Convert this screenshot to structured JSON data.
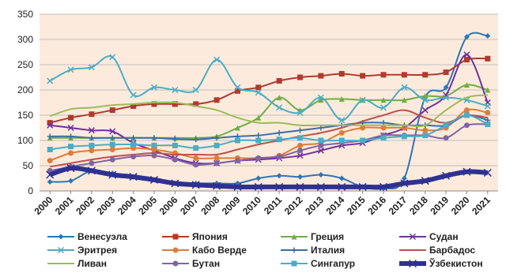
{
  "chart_data": {
    "type": "line",
    "title": "",
    "xlabel": "",
    "ylabel": "",
    "ylim": [
      0,
      350
    ],
    "yticks": [
      0,
      50,
      100,
      150,
      200,
      250,
      300,
      350
    ],
    "grid": true,
    "legend_position": "bottom",
    "x": [
      "2000",
      "2001",
      "2002",
      "2003",
      "2004",
      "2005",
      "2006",
      "2007",
      "2008",
      "2009",
      "2010",
      "2011",
      "2012",
      "2013",
      "2014",
      "2015",
      "2016",
      "2017",
      "2018",
      "2019",
      "2020",
      "2021"
    ],
    "series": [
      {
        "name": "Венесуэла",
        "color": "#2E75B6",
        "marker": "diamond",
        "values": [
          18,
          20,
          40,
          35,
          28,
          22,
          15,
          15,
          15,
          15,
          25,
          30,
          28,
          32,
          25,
          8,
          5,
          25,
          185,
          205,
          305,
          307
        ]
      },
      {
        "name": "Япония",
        "color": "#B03A2E",
        "marker": "square",
        "values": [
          135,
          145,
          152,
          160,
          168,
          172,
          172,
          172,
          180,
          198,
          205,
          218,
          225,
          228,
          232,
          228,
          230,
          230,
          230,
          235,
          260,
          262
        ]
      },
      {
        "name": "Греция",
        "color": "#70AD47",
        "marker": "triangle",
        "values": [
          105,
          105,
          105,
          105,
          105,
          105,
          105,
          105,
          108,
          125,
          145,
          185,
          160,
          180,
          182,
          180,
          180,
          180,
          188,
          188,
          210,
          200
        ]
      },
      {
        "name": "Судан",
        "color": "#7030A0",
        "marker": "x",
        "values": [
          130,
          125,
          120,
          118,
          95,
          80,
          65,
          55,
          55,
          60,
          62,
          65,
          70,
          80,
          90,
          95,
          110,
          125,
          160,
          190,
          270,
          175
        ]
      },
      {
        "name": "Эритрея",
        "color": "#4BACC6",
        "marker": "x",
        "values": [
          218,
          240,
          245,
          265,
          190,
          205,
          200,
          200,
          260,
          205,
          195,
          165,
          155,
          185,
          140,
          180,
          165,
          205,
          180,
          185,
          180,
          168
        ]
      },
      {
        "name": "Кабо Верде",
        "color": "#E07B39",
        "marker": "circle",
        "values": [
          60,
          75,
          80,
          82,
          85,
          82,
          75,
          65,
          65,
          65,
          65,
          70,
          90,
          95,
          115,
          125,
          125,
          125,
          120,
          125,
          160,
          155
        ]
      },
      {
        "name": "Италия",
        "color": "#3A6EA5",
        "marker": "plus",
        "values": [
          108,
          108,
          105,
          105,
          105,
          105,
          103,
          102,
          105,
          108,
          110,
          115,
          120,
          125,
          130,
          135,
          135,
          130,
          130,
          130,
          150,
          140
        ]
      },
      {
        "name": "Барбадос",
        "color": "#C0504D",
        "marker": "none",
        "values": [
          48,
          55,
          62,
          68,
          72,
          75,
          72,
          72,
          72,
          82,
          92,
          100,
          108,
          115,
          125,
          138,
          150,
          160,
          145,
          135,
          150,
          145
        ]
      },
      {
        "name": "Ливан",
        "color": "#9BBB59",
        "marker": "none",
        "values": [
          148,
          162,
          165,
          170,
          172,
          175,
          175,
          168,
          160,
          145,
          135,
          135,
          130,
          130,
          130,
          130,
          130,
          130,
          130,
          160,
          185,
          190
        ]
      },
      {
        "name": "Бутан",
        "color": "#8064A2",
        "marker": "circle",
        "values": [
          40,
          48,
          55,
          62,
          68,
          70,
          62,
          52,
          55,
          60,
          65,
          68,
          80,
          90,
          95,
          100,
          110,
          110,
          110,
          105,
          130,
          132
        ]
      },
      {
        "name": "Сингапур",
        "color": "#4BACC6",
        "marker": "square",
        "values": [
          82,
          88,
          90,
          92,
          92,
          90,
          90,
          85,
          90,
          100,
          100,
          102,
          105,
          100,
          100,
          100,
          105,
          108,
          110,
          130,
          150,
          132
        ]
      },
      {
        "name": "Ўзбекистон",
        "color": "#2E3192",
        "marker": "x",
        "values": [
          32,
          45,
          40,
          32,
          28,
          22,
          15,
          12,
          10,
          8,
          8,
          8,
          8,
          8,
          8,
          8,
          8,
          15,
          20,
          30,
          38,
          36
        ]
      }
    ]
  }
}
